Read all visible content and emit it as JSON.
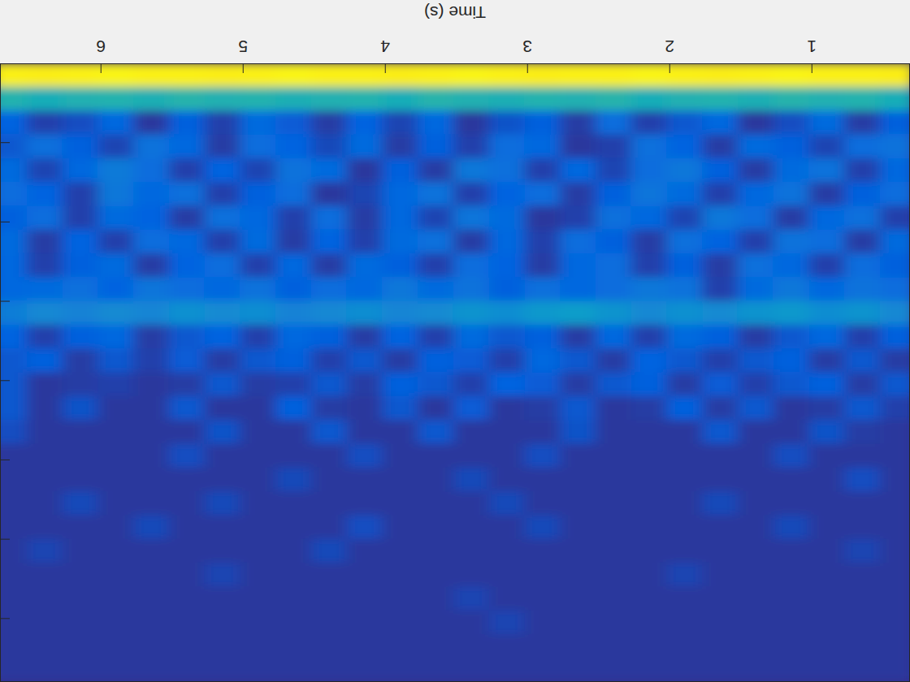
{
  "chart_data": {
    "type": "heatmap",
    "xlabel": "Time (s)",
    "x": [
      0.4,
      0.65,
      0.9,
      1.15,
      1.4,
      1.65,
      1.9,
      2.15,
      2.4,
      2.65,
      2.9,
      3.15,
      3.4,
      3.65,
      3.9,
      4.15,
      4.4,
      4.65,
      4.9,
      5.15,
      5.4,
      5.65,
      5.9,
      6.15,
      6.4,
      6.65
    ],
    "y": [
      0.15,
      0.45,
      0.75,
      1.05,
      1.35,
      1.65,
      1.95,
      2.25,
      2.55,
      2.85,
      3.15,
      3.45,
      3.75,
      4.05,
      4.35,
      4.65,
      4.95,
      5.25,
      5.55,
      5.85,
      6.15,
      6.45,
      6.75,
      7.05,
      7.35,
      7.65
    ],
    "cells": [
      [
        0.96,
        0.97,
        0.97,
        0.98,
        0.97,
        0.96,
        0.97,
        0.98,
        0.97,
        0.97,
        0.96,
        0.97,
        0.98,
        0.97,
        0.96,
        0.97,
        0.97,
        0.98,
        0.97,
        0.96,
        0.97,
        0.97,
        0.98,
        0.97,
        0.96,
        0.97
      ],
      [
        0.42,
        0.45,
        0.44,
        0.46,
        0.43,
        0.45,
        0.44,
        0.42,
        0.46,
        0.44,
        0.45,
        0.43,
        0.44,
        0.46,
        0.42,
        0.45,
        0.44,
        0.43,
        0.45,
        0.44,
        0.46,
        0.43,
        0.45,
        0.44,
        0.42,
        0.45
      ],
      [
        0.12,
        0.04,
        0.15,
        0.08,
        0.03,
        0.14,
        0.1,
        0.05,
        0.16,
        0.04,
        0.12,
        0.09,
        0.03,
        0.14,
        0.06,
        0.13,
        0.04,
        0.11,
        0.15,
        0.05,
        0.12,
        0.03,
        0.14,
        0.08,
        0.05,
        0.13
      ],
      [
        0.18,
        0.16,
        0.06,
        0.12,
        0.15,
        0.04,
        0.13,
        0.17,
        0.05,
        0.03,
        0.14,
        0.16,
        0.05,
        0.12,
        0.04,
        0.15,
        0.07,
        0.13,
        0.16,
        0.04,
        0.14,
        0.18,
        0.06,
        0.12,
        0.17,
        0.1
      ],
      [
        0.14,
        0.05,
        0.18,
        0.15,
        0.04,
        0.12,
        0.2,
        0.16,
        0.06,
        0.14,
        0.05,
        0.17,
        0.2,
        0.04,
        0.12,
        0.03,
        0.15,
        0.18,
        0.06,
        0.13,
        0.05,
        0.16,
        0.21,
        0.14,
        0.06,
        0.15
      ],
      [
        0.16,
        0.12,
        0.04,
        0.18,
        0.14,
        0.05,
        0.15,
        0.19,
        0.12,
        0.04,
        0.16,
        0.13,
        0.05,
        0.18,
        0.14,
        0.06,
        0.03,
        0.16,
        0.12,
        0.05,
        0.17,
        0.14,
        0.2,
        0.05,
        0.13,
        0.16
      ],
      [
        0.05,
        0.17,
        0.14,
        0.04,
        0.16,
        0.2,
        0.06,
        0.14,
        0.17,
        0.05,
        0.03,
        0.15,
        0.19,
        0.06,
        0.14,
        0.04,
        0.16,
        0.05,
        0.14,
        0.17,
        0.04,
        0.13,
        0.15,
        0.05,
        0.16,
        0.12
      ],
      [
        0.15,
        0.04,
        0.16,
        0.18,
        0.05,
        0.13,
        0.17,
        0.04,
        0.12,
        0.16,
        0.05,
        0.14,
        0.04,
        0.17,
        0.15,
        0.05,
        0.13,
        0.04,
        0.15,
        0.05,
        0.14,
        0.16,
        0.05,
        0.13,
        0.04,
        0.15
      ],
      [
        0.12,
        0.16,
        0.05,
        0.14,
        0.17,
        0.04,
        0.12,
        0.05,
        0.16,
        0.14,
        0.04,
        0.13,
        0.16,
        0.05,
        0.12,
        0.15,
        0.04,
        0.14,
        0.05,
        0.16,
        0.13,
        0.04,
        0.15,
        0.12,
        0.05,
        0.14
      ],
      [
        0.16,
        0.18,
        0.14,
        0.2,
        0.15,
        0.05,
        0.18,
        0.2,
        0.16,
        0.14,
        0.17,
        0.12,
        0.18,
        0.15,
        0.2,
        0.14,
        0.16,
        0.12,
        0.18,
        0.14,
        0.16,
        0.19,
        0.13,
        0.17,
        0.15,
        0.14
      ],
      [
        0.26,
        0.3,
        0.28,
        0.32,
        0.3,
        0.27,
        0.29,
        0.26,
        0.3,
        0.34,
        0.32,
        0.28,
        0.3,
        0.27,
        0.25,
        0.28,
        0.26,
        0.24,
        0.28,
        0.27,
        0.29,
        0.25,
        0.27,
        0.24,
        0.26,
        0.22
      ],
      [
        0.12,
        0.05,
        0.14,
        0.1,
        0.04,
        0.12,
        0.15,
        0.05,
        0.14,
        0.04,
        0.12,
        0.1,
        0.15,
        0.05,
        0.13,
        0.04,
        0.12,
        0.14,
        0.05,
        0.13,
        0.1,
        0.04,
        0.14,
        0.12,
        0.05,
        0.13
      ],
      [
        0.04,
        0.1,
        0.04,
        0.12,
        0.1,
        0.05,
        0.1,
        0.13,
        0.04,
        0.1,
        0.14,
        0.05,
        0.11,
        0.12,
        0.04,
        0.1,
        0.05,
        0.12,
        0.1,
        0.04,
        0.11,
        0.05,
        0.1,
        0.04,
        0.12,
        0.1
      ],
      [
        0.1,
        0.04,
        0.12,
        0.1,
        0.05,
        0.11,
        0.04,
        0.12,
        0.1,
        0.04,
        0.11,
        0.13,
        0.05,
        0.1,
        0.12,
        0.04,
        0.1,
        0.05,
        0.04,
        0.1,
        0.04,
        0.03,
        0.05,
        0.04,
        0.03,
        0.1
      ],
      [
        0.05,
        0.1,
        0.04,
        0.03,
        0.1,
        0.04,
        0.12,
        0.04,
        0.03,
        0.1,
        0.04,
        0.03,
        0.11,
        0.03,
        0.1,
        0.03,
        0.04,
        0.12,
        0.03,
        0.03,
        0.1,
        0.03,
        0.03,
        0.09,
        0.03,
        0.1
      ],
      [
        0.03,
        0.04,
        0.09,
        0.03,
        0.03,
        0.1,
        0.03,
        0.03,
        0.03,
        0.09,
        0.03,
        0.03,
        0.03,
        0.1,
        0.03,
        0.03,
        0.1,
        0.03,
        0.03,
        0.09,
        0.03,
        0.03,
        0.03,
        0.03,
        0.03,
        0.08
      ],
      [
        0.03,
        0.03,
        0.03,
        0.08,
        0.03,
        0.03,
        0.03,
        0.03,
        0.03,
        0.03,
        0.08,
        0.03,
        0.03,
        0.03,
        0.03,
        0.08,
        0.03,
        0.03,
        0.03,
        0.03,
        0.08,
        0.03,
        0.03,
        0.03,
        0.03,
        0.03
      ],
      [
        0.03,
        0.08,
        0.03,
        0.03,
        0.03,
        0.03,
        0.03,
        0.03,
        0.03,
        0.03,
        0.03,
        0.03,
        0.07,
        0.03,
        0.03,
        0.03,
        0.03,
        0.07,
        0.03,
        0.03,
        0.03,
        0.03,
        0.03,
        0.03,
        0.03,
        0.03
      ],
      [
        0.03,
        0.03,
        0.03,
        0.03,
        0.03,
        0.07,
        0.03,
        0.03,
        0.03,
        0.03,
        0.03,
        0.07,
        0.03,
        0.03,
        0.03,
        0.03,
        0.03,
        0.03,
        0.03,
        0.07,
        0.03,
        0.03,
        0.03,
        0.07,
        0.03,
        0.03
      ],
      [
        0.03,
        0.03,
        0.03,
        0.07,
        0.03,
        0.03,
        0.03,
        0.03,
        0.03,
        0.03,
        0.07,
        0.03,
        0.03,
        0.03,
        0.03,
        0.08,
        0.03,
        0.03,
        0.03,
        0.03,
        0.03,
        0.07,
        0.03,
        0.03,
        0.03,
        0.03
      ],
      [
        0.03,
        0.06,
        0.03,
        0.03,
        0.03,
        0.03,
        0.03,
        0.03,
        0.03,
        0.03,
        0.03,
        0.03,
        0.03,
        0.03,
        0.03,
        0.03,
        0.07,
        0.03,
        0.03,
        0.03,
        0.03,
        0.03,
        0.03,
        0.03,
        0.06,
        0.03
      ],
      [
        0.03,
        0.03,
        0.03,
        0.03,
        0.03,
        0.03,
        0.06,
        0.03,
        0.03,
        0.03,
        0.03,
        0.03,
        0.03,
        0.03,
        0.03,
        0.03,
        0.03,
        0.03,
        0.03,
        0.06,
        0.03,
        0.03,
        0.03,
        0.03,
        0.03,
        0.03
      ],
      [
        0.03,
        0.03,
        0.03,
        0.03,
        0.03,
        0.03,
        0.03,
        0.03,
        0.03,
        0.03,
        0.03,
        0.03,
        0.06,
        0.03,
        0.03,
        0.03,
        0.03,
        0.03,
        0.03,
        0.03,
        0.03,
        0.03,
        0.03,
        0.03,
        0.03,
        0.03
      ],
      [
        0.03,
        0.03,
        0.03,
        0.03,
        0.03,
        0.03,
        0.03,
        0.03,
        0.03,
        0.03,
        0.03,
        0.06,
        0.03,
        0.03,
        0.03,
        0.03,
        0.03,
        0.03,
        0.03,
        0.03,
        0.03,
        0.03,
        0.03,
        0.03,
        0.03,
        0.03
      ],
      [
        0.03,
        0.03,
        0.03,
        0.03,
        0.03,
        0.03,
        0.03,
        0.03,
        0.03,
        0.03,
        0.03,
        0.03,
        0.03,
        0.03,
        0.03,
        0.03,
        0.03,
        0.03,
        0.03,
        0.03,
        0.03,
        0.03,
        0.03,
        0.03,
        0.03,
        0.03
      ],
      [
        0.03,
        0.03,
        0.03,
        0.03,
        0.03,
        0.03,
        0.03,
        0.03,
        0.03,
        0.03,
        0.03,
        0.03,
        0.03,
        0.03,
        0.03,
        0.03,
        0.03,
        0.03,
        0.03,
        0.03,
        0.03,
        0.03,
        0.03,
        0.03,
        0.03,
        0.03
      ]
    ],
    "zlim": [
      0,
      1
    ],
    "xlim": [
      0.31,
      6.71
    ],
    "ylim": [
      0,
      7.8
    ],
    "xticks": [
      1,
      2,
      3,
      4,
      5,
      6
    ],
    "yticks": [
      1,
      2,
      3,
      4,
      5,
      6,
      7
    ],
    "tick_labels": "x"
  }
}
